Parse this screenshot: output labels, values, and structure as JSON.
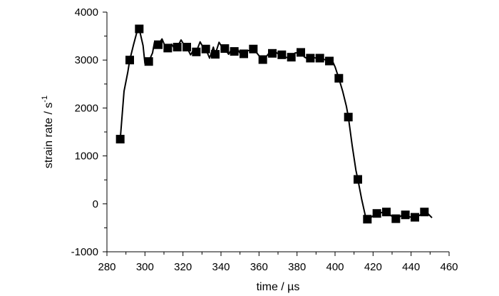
{
  "chart_data": {
    "type": "line",
    "xlabel": "time / µs",
    "ylabel": "strain rate / s",
    "ylabel_superscript": "-1",
    "xlim": [
      280,
      460
    ],
    "ylim": [
      -1000,
      4000
    ],
    "x_ticks": [
      280,
      300,
      320,
      340,
      360,
      380,
      400,
      420,
      440,
      460
    ],
    "y_ticks": [
      -1000,
      0,
      1000,
      2000,
      3000,
      4000
    ],
    "grid": false,
    "colors": {
      "line": "#000000",
      "marker": "#000000"
    },
    "series": [
      {
        "marker": "square",
        "x": [
          287,
          292,
          297,
          302,
          307,
          312,
          317,
          322,
          327,
          332,
          337,
          342,
          347,
          352,
          357,
          362,
          367,
          372,
          377,
          382,
          387,
          392,
          397,
          402,
          407,
          412,
          417,
          422,
          427,
          432,
          437,
          442,
          447
        ],
        "y": [
          1350,
          3000,
          3650,
          2970,
          3320,
          3250,
          3270,
          3270,
          3170,
          3230,
          3120,
          3240,
          3180,
          3130,
          3230,
          3010,
          3140,
          3110,
          3060,
          3160,
          3040,
          3040,
          2980,
          2620,
          1810,
          510,
          -320,
          -200,
          -170,
          -310,
          -230,
          -280,
          -170
        ]
      },
      {
        "marker": "none",
        "x": [
          287,
          289,
          291,
          292,
          294,
          296,
          297,
          299,
          300,
          302,
          304,
          305,
          307,
          309,
          311,
          312,
          314,
          316,
          317,
          319,
          321,
          322,
          324,
          326,
          327,
          329,
          331,
          332,
          334,
          336,
          337,
          339,
          341,
          342,
          344,
          346,
          347,
          349,
          351,
          352,
          354,
          356,
          357,
          359,
          361,
          362,
          364,
          366,
          367,
          369,
          371,
          372,
          374,
          376,
          377,
          379,
          381,
          382,
          384,
          386,
          387,
          389,
          391,
          392,
          394,
          396,
          397,
          399,
          400,
          402,
          404,
          406,
          407,
          409,
          411,
          412,
          414,
          416,
          417,
          419,
          421,
          422,
          424,
          426,
          427,
          429,
          431,
          432,
          434,
          436,
          437,
          439,
          441,
          442,
          444,
          446,
          447,
          449,
          451
        ],
        "y": [
          1350,
          2350,
          2750,
          3000,
          3320,
          3620,
          3650,
          3300,
          2930,
          2970,
          3150,
          3370,
          3320,
          3440,
          3250,
          3250,
          3330,
          3210,
          3270,
          3420,
          3290,
          3270,
          3110,
          3240,
          3170,
          3380,
          3240,
          3230,
          3040,
          3270,
          3120,
          3370,
          3240,
          3240,
          3120,
          3250,
          3180,
          3210,
          3080,
          3130,
          3200,
          3190,
          3230,
          3140,
          3040,
          3010,
          3080,
          3180,
          3140,
          3160,
          3100,
          3110,
          3060,
          3040,
          3060,
          3150,
          3150,
          3160,
          3060,
          3020,
          3040,
          3050,
          3030,
          3040,
          3020,
          2980,
          2980,
          2950,
          2860,
          2620,
          2350,
          2030,
          1810,
          1220,
          700,
          510,
          100,
          -260,
          -320,
          -280,
          -220,
          -200,
          -190,
          -160,
          -170,
          -230,
          -290,
          -310,
          -270,
          -220,
          -230,
          -270,
          -290,
          -280,
          -250,
          -200,
          -170,
          -210,
          -290
        ]
      }
    ]
  }
}
